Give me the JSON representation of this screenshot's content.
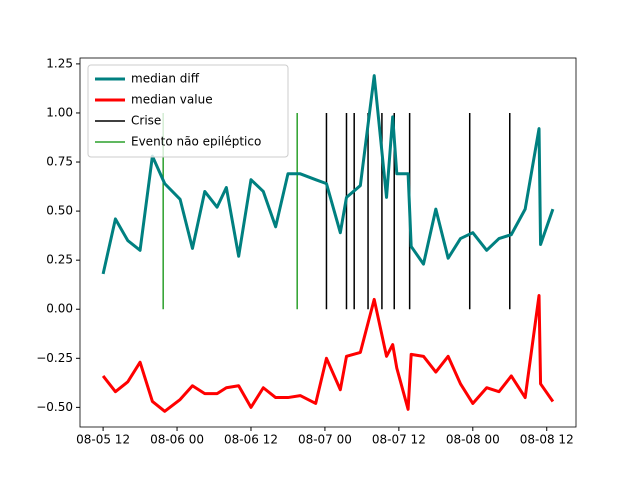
{
  "chart_data": {
    "type": "line",
    "x": [
      "08-05 12:00",
      "08-05 14:00",
      "08-05 16:00",
      "08-05 18:00",
      "08-05 20:00",
      "08-05 22:00",
      "08-06 00:30",
      "08-06 02:30",
      "08-06 04:30",
      "08-06 06:30",
      "08-06 08:00",
      "08-06 10:00",
      "08-06 12:00",
      "08-06 14:00",
      "08-06 16:00",
      "08-06 18:00",
      "08-06 20:00",
      "08-06 22:30",
      "08-07 00:15",
      "08-07 02:30",
      "08-07 03:30",
      "08-07 05:45",
      "08-07 08:00",
      "08-07 10:00",
      "08-07 11:00",
      "08-07 11:40",
      "08-07 13:30",
      "08-07 14:00",
      "08-07 16:00",
      "08-07 18:00",
      "08-07 20:00",
      "08-07 22:00",
      "08-08 00:00",
      "08-08 02:15",
      "08-08 04:15",
      "08-08 06:15",
      "08-08 08:30",
      "08-08 10:45",
      "08-08 11:00",
      "08-08 13:00"
    ],
    "series": [
      {
        "name": "median diff",
        "color": "#008080",
        "values": [
          0.18,
          0.46,
          0.35,
          0.3,
          0.78,
          0.64,
          0.56,
          0.31,
          0.6,
          0.52,
          0.62,
          0.27,
          0.66,
          0.6,
          0.42,
          0.69,
          0.69,
          0.66,
          0.64,
          0.39,
          0.57,
          0.63,
          1.19,
          0.57,
          0.98,
          0.69,
          0.69,
          0.32,
          0.23,
          0.51,
          0.26,
          0.36,
          0.39,
          0.3,
          0.36,
          0.38,
          0.51,
          0.92,
          0.33,
          0.51
        ]
      },
      {
        "name": "median value",
        "color": "#ff0000",
        "values": [
          -0.34,
          -0.42,
          -0.37,
          -0.27,
          -0.47,
          -0.52,
          -0.46,
          -0.39,
          -0.43,
          -0.43,
          -0.4,
          -0.39,
          -0.5,
          -0.4,
          -0.45,
          -0.45,
          -0.44,
          -0.48,
          -0.25,
          -0.41,
          -0.24,
          -0.22,
          0.05,
          -0.24,
          -0.18,
          -0.3,
          -0.51,
          -0.23,
          -0.24,
          -0.32,
          -0.24,
          -0.38,
          -0.48,
          -0.4,
          -0.42,
          -0.34,
          -0.45,
          0.07,
          -0.38,
          -0.47
        ]
      }
    ],
    "events": [
      {
        "name": "Crise",
        "color": "#000000",
        "ymin": 0,
        "ymax": 1,
        "x": [
          "08-07 00:15",
          "08-07 03:30",
          "08-07 04:45",
          "08-07 07:00",
          "08-07 09:15",
          "08-07 11:15",
          "08-07 13:45",
          "08-07 23:30",
          "08-08 06:00"
        ]
      },
      {
        "name": "Evento não epiléptico",
        "color": "#2ca02c",
        "ymin": 0,
        "ymax": 1,
        "x": [
          "08-05 21:45",
          "08-06 19:30"
        ]
      }
    ],
    "xlim": [
      "08-05 08:15",
      "08-08 16:45"
    ],
    "xticks": [
      {
        "value": "08-05 12:00",
        "label": "08-05 12"
      },
      {
        "value": "08-06 00:00",
        "label": "08-06 00"
      },
      {
        "value": "08-06 12:00",
        "label": "08-06 12"
      },
      {
        "value": "08-07 00:00",
        "label": "08-07 00"
      },
      {
        "value": "08-07 12:00",
        "label": "08-07 12"
      },
      {
        "value": "08-08 00:00",
        "label": "08-08 00"
      },
      {
        "value": "08-08 12:00",
        "label": "08-08 12"
      }
    ],
    "ylim": [
      -0.6,
      1.28
    ],
    "yticks": [
      {
        "value": -0.5,
        "label": "−0.50"
      },
      {
        "value": -0.25,
        "label": "−0.25"
      },
      {
        "value": 0,
        "label": "0.00"
      },
      {
        "value": 0.25,
        "label": "0.25"
      },
      {
        "value": 0.5,
        "label": "0.50"
      },
      {
        "value": 0.75,
        "label": "0.75"
      },
      {
        "value": 1,
        "label": "1.00"
      },
      {
        "value": 1.25,
        "label": "1.25"
      }
    ],
    "grid": false,
    "legend": "upper left"
  }
}
